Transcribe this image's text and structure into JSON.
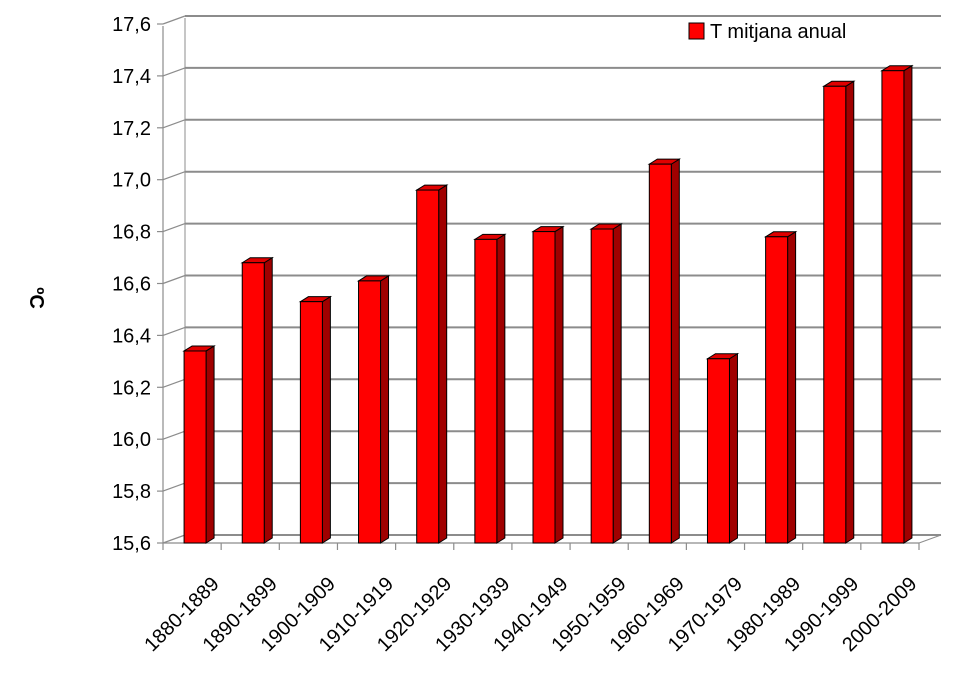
{
  "chart_data": {
    "type": "bar",
    "title": "",
    "xlabel": "",
    "ylabel": "ºC",
    "ylim": [
      15.6,
      17.6
    ],
    "yticks": [
      "15,6",
      "15,8",
      "16,0",
      "16,2",
      "16,4",
      "16,6",
      "16,8",
      "17,0",
      "17,2",
      "17,4",
      "17,6"
    ],
    "categories": [
      "1880-1889",
      "1890-1899",
      "1900-1909",
      "1910-1919",
      "1920-1929",
      "1930-1939",
      "1940-1949",
      "1950-1959",
      "1960-1969",
      "1970-1979",
      "1980-1989",
      "1990-1999",
      "2000-2009"
    ],
    "series": [
      {
        "name": "T mitjana anual",
        "color": "#ff0000",
        "values": [
          16.34,
          16.68,
          16.53,
          16.61,
          16.96,
          16.77,
          16.8,
          16.81,
          17.06,
          16.31,
          16.78,
          17.36,
          17.42
        ]
      }
    ],
    "grid": true,
    "legend_position": "top-right",
    "style": "3d-column"
  }
}
